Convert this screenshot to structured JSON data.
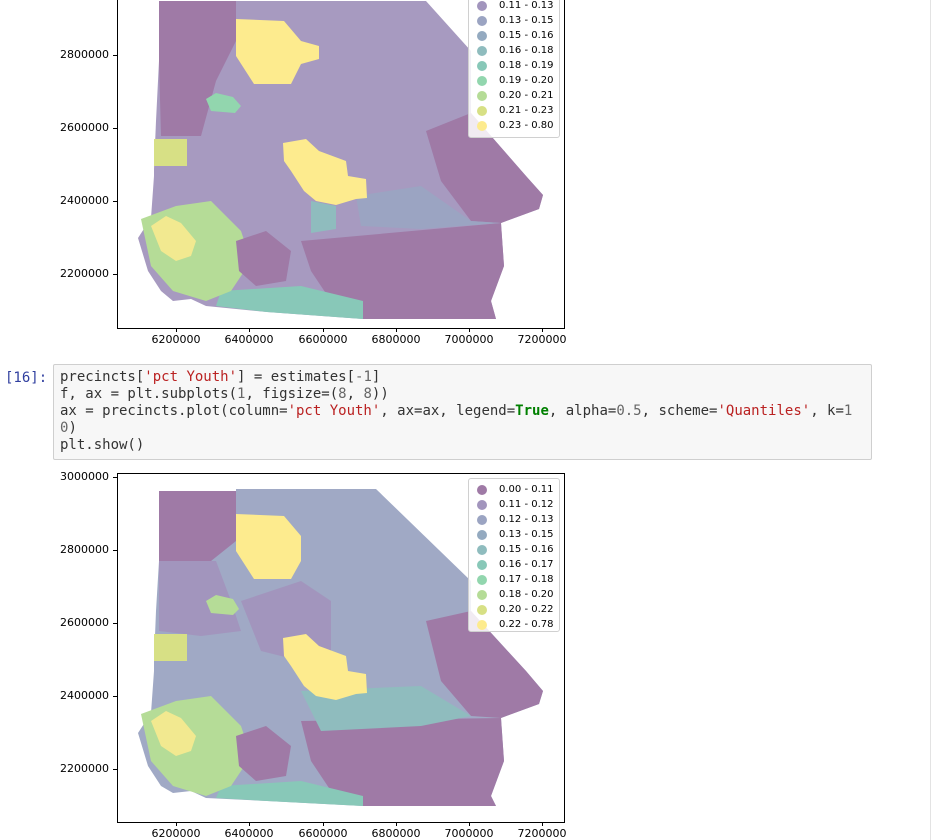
{
  "notebook": {
    "cell16": {
      "prompt": "[16]:",
      "lines": [
        [
          [
            "t",
            "precincts["
          ],
          [
            "s",
            "'pct Youth'"
          ],
          [
            "t",
            "] = estimates["
          ],
          [
            "n",
            "-1"
          ],
          [
            "t",
            "]"
          ]
        ],
        [
          [
            "t",
            "f, ax = plt.subplots("
          ],
          [
            "n",
            "1"
          ],
          [
            "t",
            ", figsize=("
          ],
          [
            "n",
            "8"
          ],
          [
            "t",
            ", "
          ],
          [
            "n",
            "8"
          ],
          [
            "t",
            "))"
          ]
        ],
        [
          [
            "t",
            "ax = precincts.plot(column="
          ],
          [
            "s",
            "'pct Youth'"
          ],
          [
            "t",
            ", ax=ax, legend="
          ],
          [
            "k",
            "True"
          ],
          [
            "t",
            ", alpha="
          ],
          [
            "n",
            "0.5"
          ],
          [
            "t",
            ", scheme="
          ],
          [
            "s",
            "'Quantiles'"
          ],
          [
            "t",
            ", k="
          ],
          [
            "n",
            "1"
          ]
        ],
        [
          [
            "n",
            "0"
          ],
          [
            "t",
            ")"
          ]
        ],
        [
          [
            "t",
            "plt.show()"
          ]
        ]
      ]
    }
  },
  "colors": {
    "c0": "#9f7aa6",
    "c1": "#a295bd",
    "c2": "#9ba4c2",
    "c3": "#94aac0",
    "c4": "#8fbcbe",
    "c5": "#88c8b8",
    "c6": "#92d6ae",
    "c7": "#b5dc97",
    "c8": "#d7e085",
    "c9": "#fdeb8e"
  },
  "chart_data": [
    {
      "type": "choropleth",
      "title": "",
      "xlabel": "",
      "ylabel": "",
      "xticks": [
        "6200000",
        "6400000",
        "6600000",
        "6800000",
        "7000000",
        "7200000"
      ],
      "yticks": [
        "2800000",
        "2600000",
        "2400000",
        "2200000"
      ],
      "ylim_visible": [
        2100000,
        2950000
      ],
      "legend_placement": "top-right",
      "legend": [
        {
          "label": "0.11 - 0.13",
          "color": "#a295bd"
        },
        {
          "label": "0.13 - 0.15",
          "color": "#9ba4c2"
        },
        {
          "label": "0.15 - 0.16",
          "color": "#94aac0"
        },
        {
          "label": "0.16 - 0.18",
          "color": "#8fbcbe"
        },
        {
          "label": "0.18 - 0.19",
          "color": "#88c8b8"
        },
        {
          "label": "0.19 - 0.20",
          "color": "#92d6ae"
        },
        {
          "label": "0.20 - 0.21",
          "color": "#b5dc97"
        },
        {
          "label": "0.21 - 0.23",
          "color": "#d7e085"
        },
        {
          "label": "0.23 - 0.80",
          "color": "#fdeb8e"
        }
      ]
    },
    {
      "type": "choropleth",
      "title": "",
      "xlabel": "",
      "ylabel": "",
      "xticks": [
        "6200000",
        "6400000",
        "6600000",
        "6800000",
        "7000000",
        "7200000"
      ],
      "yticks": [
        "3000000",
        "2800000",
        "2600000",
        "2400000",
        "2200000"
      ],
      "legend_placement": "top-right",
      "legend": [
        {
          "label": "0.00 - 0.11",
          "color": "#9f7aa6"
        },
        {
          "label": "0.11 - 0.12",
          "color": "#a295bd"
        },
        {
          "label": "0.12 - 0.13",
          "color": "#9ba4c2"
        },
        {
          "label": "0.13 - 0.15",
          "color": "#94aac0"
        },
        {
          "label": "0.15 - 0.16",
          "color": "#8fbcbe"
        },
        {
          "label": "0.16 - 0.17",
          "color": "#88c8b8"
        },
        {
          "label": "0.17 - 0.18",
          "color": "#92d6ae"
        },
        {
          "label": "0.18 - 0.20",
          "color": "#b5dc97"
        },
        {
          "label": "0.20 - 0.22",
          "color": "#d7e085"
        },
        {
          "label": "0.22 - 0.78",
          "color": "#fdeb8e"
        }
      ]
    }
  ]
}
